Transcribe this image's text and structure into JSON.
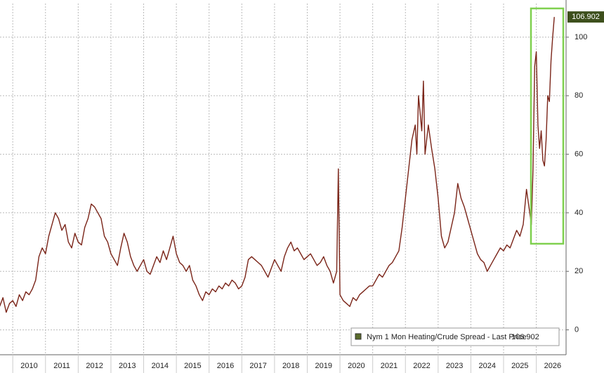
{
  "chart_data": {
    "type": "line",
    "x": [
      2009.6,
      2009.7,
      2009.8,
      2009.9,
      2010.0,
      2010.1,
      2010.2,
      2010.3,
      2010.4,
      2010.5,
      2010.6,
      2010.7,
      2010.8,
      2010.9,
      2011.0,
      2011.1,
      2011.2,
      2011.3,
      2011.4,
      2011.5,
      2011.6,
      2011.7,
      2011.8,
      2011.9,
      2012.0,
      2012.1,
      2012.2,
      2012.3,
      2012.4,
      2012.5,
      2012.6,
      2012.7,
      2012.8,
      2012.9,
      2013.0,
      2013.1,
      2013.2,
      2013.3,
      2013.4,
      2013.5,
      2013.6,
      2013.7,
      2013.8,
      2013.9,
      2014.0,
      2014.1,
      2014.2,
      2014.3,
      2014.4,
      2014.5,
      2014.6,
      2014.7,
      2014.8,
      2014.9,
      2015.0,
      2015.1,
      2015.2,
      2015.3,
      2015.4,
      2015.5,
      2015.6,
      2015.7,
      2015.8,
      2015.9,
      2016.0,
      2016.1,
      2016.2,
      2016.3,
      2016.4,
      2016.5,
      2016.6,
      2016.7,
      2016.8,
      2016.9,
      2017.0,
      2017.1,
      2017.2,
      2017.3,
      2017.4,
      2017.5,
      2017.6,
      2017.7,
      2017.8,
      2017.9,
      2018.0,
      2018.1,
      2018.2,
      2018.3,
      2018.4,
      2018.5,
      2018.6,
      2018.7,
      2018.8,
      2018.9,
      2019.0,
      2019.1,
      2019.2,
      2019.3,
      2019.4,
      2019.5,
      2019.6,
      2019.7,
      2019.8,
      2019.9,
      2019.95,
      2020.0,
      2020.1,
      2020.2,
      2020.3,
      2020.4,
      2020.5,
      2020.6,
      2020.7,
      2020.8,
      2020.9,
      2021.0,
      2021.1,
      2021.2,
      2021.3,
      2021.4,
      2021.5,
      2021.6,
      2021.7,
      2021.8,
      2021.9,
      2022.0,
      2022.1,
      2022.2,
      2022.3,
      2022.35,
      2022.4,
      2022.5,
      2022.55,
      2022.6,
      2022.7,
      2022.8,
      2022.9,
      2023.0,
      2023.1,
      2023.2,
      2023.3,
      2023.4,
      2023.5,
      2023.6,
      2023.7,
      2023.8,
      2023.9,
      2024.0,
      2024.1,
      2024.2,
      2024.3,
      2024.4,
      2024.5,
      2024.6,
      2024.7,
      2024.8,
      2024.9,
      2025.0,
      2025.1,
      2025.2,
      2025.3,
      2025.4,
      2025.5,
      2025.6,
      2025.7,
      2025.8,
      2025.85,
      2025.9,
      2025.95,
      2026.0,
      2026.05,
      2026.1,
      2026.15,
      2026.2,
      2026.25,
      2026.3,
      2026.35,
      2026.4,
      2026.45,
      2026.5,
      2026.55
    ],
    "series": [
      {
        "name": "Nym 1 Mon Heating/Crude Spread - Last Price",
        "color": "#7a2418",
        "values": [
          8,
          11,
          6,
          9,
          10,
          8,
          12,
          10,
          13,
          12,
          14,
          17,
          25,
          28,
          26,
          32,
          36,
          40,
          38,
          34,
          36,
          30,
          28,
          33,
          30,
          29,
          35,
          38,
          43,
          42,
          40,
          38,
          32,
          30,
          26,
          24,
          22,
          28,
          33,
          30,
          25,
          22,
          20,
          22,
          24,
          20,
          19,
          22,
          25,
          23,
          27,
          24,
          28,
          32,
          26,
          23,
          22,
          20,
          22,
          17,
          15,
          12,
          10,
          13,
          12,
          14,
          13,
          15,
          14,
          16,
          15,
          17,
          16,
          14,
          15,
          18,
          24,
          25,
          24,
          23,
          22,
          20,
          18,
          21,
          24,
          22,
          20,
          25,
          28,
          30,
          27,
          28,
          26,
          24,
          25,
          26,
          24,
          22,
          23,
          25,
          22,
          20,
          16,
          20,
          55,
          12,
          10,
          9,
          8,
          11,
          10,
          12,
          13,
          14,
          15,
          15,
          17,
          19,
          18,
          20,
          22,
          23,
          25,
          27,
          35,
          45,
          55,
          65,
          70,
          60,
          80,
          68,
          85,
          60,
          70,
          62,
          55,
          45,
          32,
          28,
          30,
          35,
          40,
          50,
          45,
          42,
          38,
          34,
          30,
          26,
          24,
          23,
          20,
          22,
          24,
          26,
          28,
          27,
          29,
          28,
          31,
          34,
          32,
          36,
          48,
          40,
          36,
          55,
          90,
          95,
          70,
          62,
          68,
          58,
          56,
          65,
          80,
          78,
          92,
          100,
          106.902
        ]
      }
    ],
    "last_price": {
      "value": 106.902,
      "label": "106.902"
    },
    "xlim": [
      2009.61,
      2026.91
    ],
    "xticks": [
      {
        "value": 2010,
        "label": "2010"
      },
      {
        "value": 2011,
        "label": "2011"
      },
      {
        "value": 2012,
        "label": "2012"
      },
      {
        "value": 2013,
        "label": "2013"
      },
      {
        "value": 2014,
        "label": "2014"
      },
      {
        "value": 2015,
        "label": "2015"
      },
      {
        "value": 2016,
        "label": "2016"
      },
      {
        "value": 2017,
        "label": "2017"
      },
      {
        "value": 2018,
        "label": "2018"
      },
      {
        "value": 2019,
        "label": "2019"
      },
      {
        "value": 2020,
        "label": "2020"
      },
      {
        "value": 2021,
        "label": "2021"
      },
      {
        "value": 2022,
        "label": "2022"
      },
      {
        "value": 2023,
        "label": "2023"
      },
      {
        "value": 2024,
        "label": "2024"
      },
      {
        "value": 2025,
        "label": "2025"
      },
      {
        "value": 2026,
        "label": "2026"
      }
    ],
    "ylim": [
      -8.5,
      111.5
    ],
    "yticks": [
      0,
      20,
      40,
      60,
      80,
      100
    ],
    "grid": true
  }
}
